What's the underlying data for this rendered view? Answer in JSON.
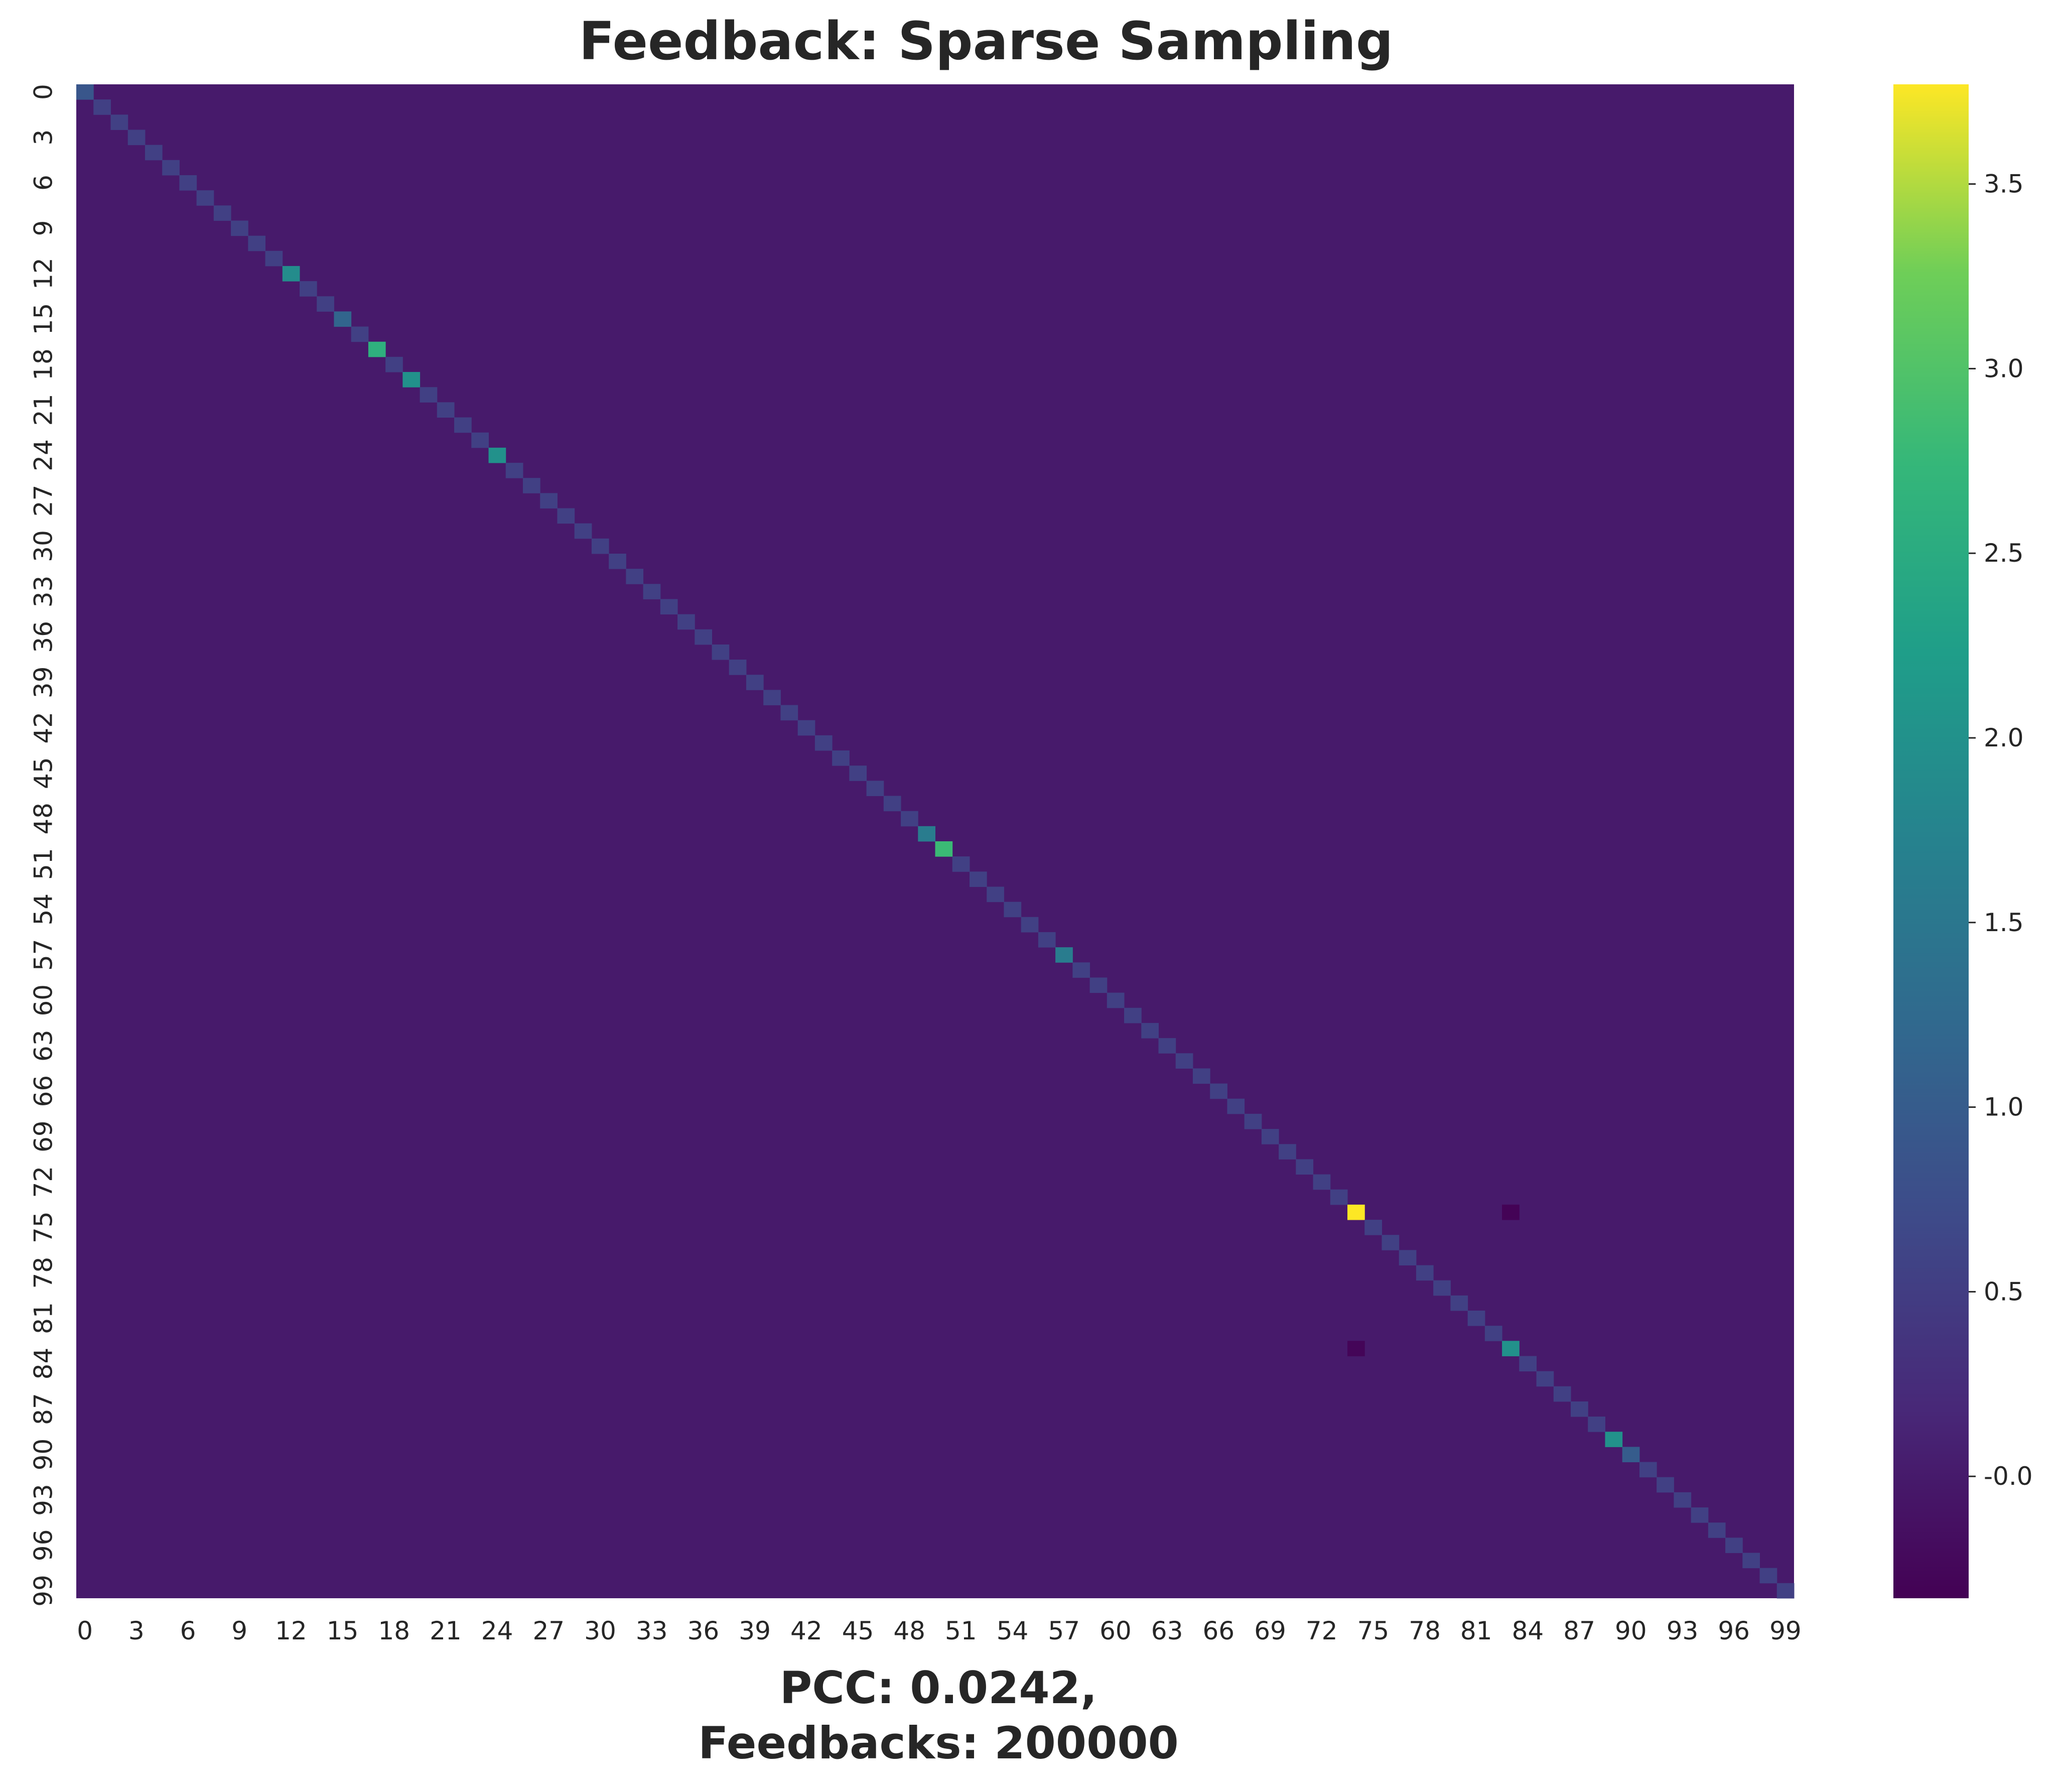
{
  "chart_data": {
    "type": "heatmap",
    "title": "Feedback: Sparse Sampling",
    "xlabel_lines": [
      "PCC: 0.0242,",
      "Feedbacks: 200000"
    ],
    "ylabel": "",
    "n_rows": 100,
    "n_cols": 100,
    "x_tick_labels": [
      "0",
      "3",
      "6",
      "9",
      "12",
      "15",
      "18",
      "21",
      "24",
      "27",
      "30",
      "33",
      "36",
      "39",
      "42",
      "45",
      "48",
      "51",
      "54",
      "57",
      "60",
      "63",
      "66",
      "69",
      "72",
      "75",
      "78",
      "81",
      "84",
      "87",
      "90",
      "93",
      "96",
      "99"
    ],
    "y_tick_labels": [
      "0",
      "3",
      "6",
      "9",
      "12",
      "15",
      "18",
      "21",
      "24",
      "27",
      "30",
      "33",
      "36",
      "39",
      "42",
      "45",
      "48",
      "51",
      "54",
      "57",
      "60",
      "63",
      "66",
      "69",
      "72",
      "75",
      "78",
      "81",
      "84",
      "87",
      "90",
      "93",
      "96",
      "99"
    ],
    "colormap": "viridis",
    "vmin": -0.33,
    "vmax": 3.77,
    "colorbar_ticks": [
      "-0.0",
      "0.5",
      "1.0",
      "1.5",
      "2.0",
      "2.5",
      "3.0",
      "3.5"
    ],
    "colorbar_tick_values": [
      0.0,
      0.5,
      1.0,
      1.5,
      2.0,
      2.5,
      3.0,
      3.5
    ],
    "off_diagonal_value": 0.0,
    "diagonal_default_value": 0.55,
    "diagonal_highlights": [
      {
        "index": 0,
        "value": 0.9
      },
      {
        "index": 12,
        "value": 1.9
      },
      {
        "index": 15,
        "value": 1.15
      },
      {
        "index": 17,
        "value": 2.6
      },
      {
        "index": 19,
        "value": 2.0
      },
      {
        "index": 24,
        "value": 2.0
      },
      {
        "index": 49,
        "value": 1.6
      },
      {
        "index": 50,
        "value": 2.8
      },
      {
        "index": 57,
        "value": 1.6
      },
      {
        "index": 74,
        "value": 3.77
      },
      {
        "index": 83,
        "value": 2.0
      },
      {
        "index": 89,
        "value": 2.0
      },
      {
        "index": 90,
        "value": 1.0
      }
    ],
    "off_diagonal_outliers": [
      {
        "row": 74,
        "col": 83,
        "value": -0.3
      },
      {
        "row": 83,
        "col": 74,
        "value": -0.28
      }
    ]
  }
}
